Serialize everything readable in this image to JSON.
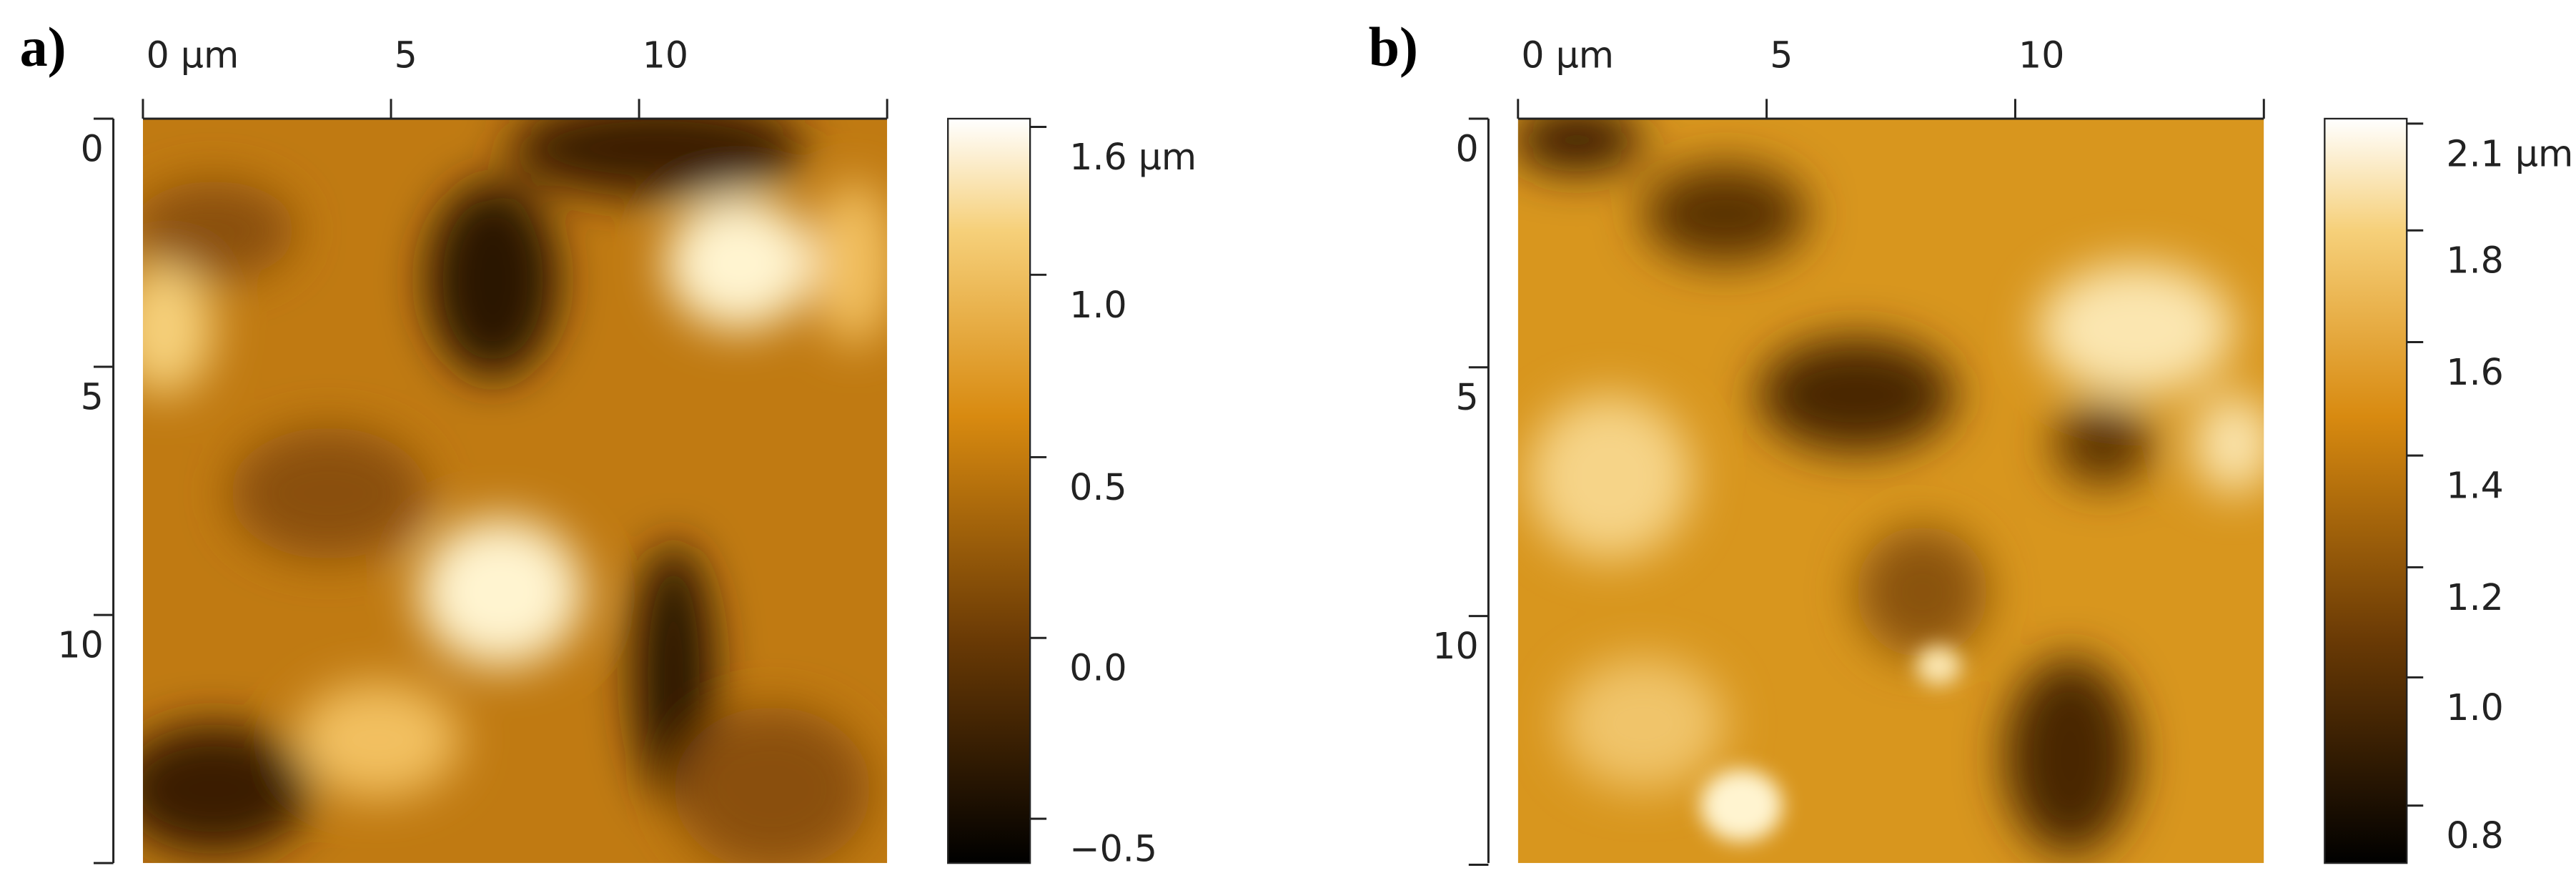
{
  "panels": [
    {
      "label": "a)",
      "x_ticks": [
        "0 µm",
        "5",
        "10"
      ],
      "y_ticks": [
        "0",
        "5",
        "10"
      ],
      "colorbar_ticks": [
        "1.6 µm",
        "1.0",
        "0.5",
        "0.0",
        "−0.5"
      ]
    },
    {
      "label": "b)",
      "x_ticks": [
        "0 µm",
        "5",
        "10"
      ],
      "y_ticks": [
        "0",
        "5",
        "10"
      ],
      "colorbar_ticks": [
        "2.1 µm",
        "1.8",
        "1.6",
        "1.4",
        "1.2",
        "1.0",
        "0.8"
      ]
    }
  ]
}
